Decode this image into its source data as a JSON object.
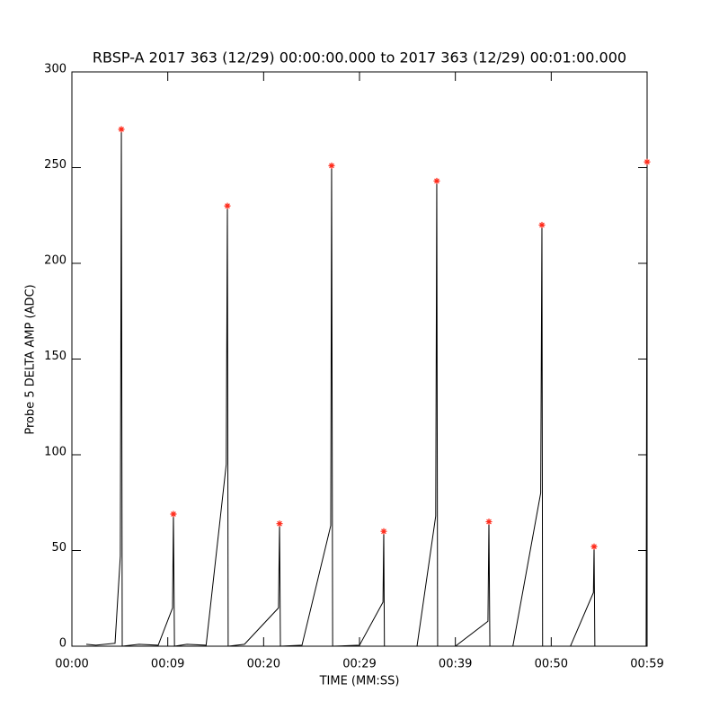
{
  "chart_data": {
    "type": "line",
    "title": "RBSP-A 2017 363 (12/29) 00:00:00.000 to 2017 363 (12/29) 00:01:00.000",
    "x_label": "TIME (MM:SS)",
    "y_label": "Probe 5 DELTA AMP (ADC)",
    "xlim": [
      0,
      60
    ],
    "xticks": [
      {
        "value": 0,
        "label": "00:00"
      },
      {
        "value": 10,
        "label": "00:09"
      },
      {
        "value": 20,
        "label": "00:20"
      },
      {
        "value": 30,
        "label": "00:29"
      },
      {
        "value": 40,
        "label": "00:39"
      },
      {
        "value": 50,
        "label": "00:50"
      },
      {
        "value": 60,
        "label": "00:59"
      }
    ],
    "ylim": [
      0,
      300
    ],
    "yticks": [
      0,
      50,
      100,
      150,
      200,
      250,
      300
    ],
    "grid": false,
    "series": [
      {
        "color": "#000000",
        "marker": "none",
        "x": [
          1.5,
          2.5,
          4.5,
          5.05,
          5.16,
          5.25,
          7,
          9,
          10.5,
          10.59,
          10.7,
          12,
          14,
          16.1,
          16.22,
          16.3,
          18,
          21.55,
          21.66,
          21.75,
          24,
          27.0,
          27.09,
          27.2,
          30,
          32.45,
          32.53,
          32.6,
          36,
          37.95,
          38.06,
          38.15,
          40,
          43.4,
          43.5,
          43.6,
          46,
          48.9,
          49.03,
          49.1,
          52,
          54.4,
          54.47,
          54.55,
          59.9,
          60
        ],
        "values": [
          1,
          0.5,
          1.5,
          47,
          270,
          0,
          1,
          0.5,
          20,
          69,
          0,
          1,
          0.5,
          95,
          230,
          0,
          1,
          20,
          64,
          0,
          0.5,
          63,
          251,
          0,
          0.5,
          23,
          60,
          0,
          0,
          68,
          243,
          0,
          0,
          13,
          65,
          0,
          0,
          80,
          220,
          0,
          0,
          28,
          52,
          0,
          0,
          253
        ]
      },
      {
        "color": "#ff2a1a",
        "marker": "asterisk",
        "x": [
          5.16,
          10.59,
          16.22,
          21.66,
          27.09,
          32.53,
          38.06,
          43.5,
          49.03,
          54.47,
          60
        ],
        "values": [
          270,
          69,
          230,
          64,
          251,
          60,
          243,
          65,
          220,
          52,
          253
        ]
      }
    ]
  }
}
